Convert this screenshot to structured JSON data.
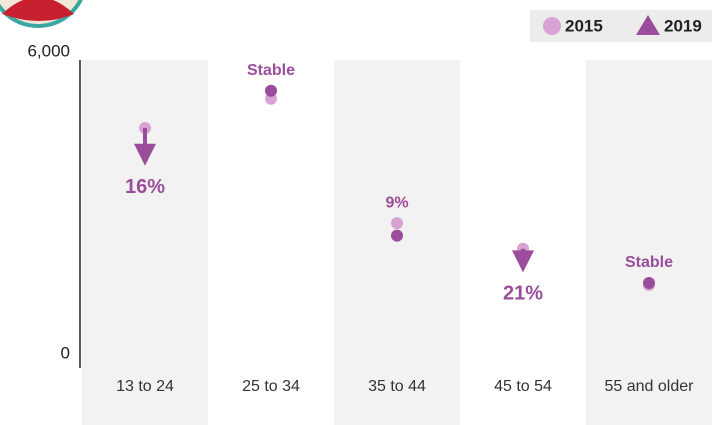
{
  "chart_data": {
    "type": "dumbbell-arrow",
    "categories": [
      "13 to 24",
      "25 to 34",
      "35 to 44",
      "45 to 54",
      "55 and older"
    ],
    "series": [
      {
        "name": "2015",
        "color": "#d8a3d2",
        "values": [
          4650,
          5230,
          2760,
          2250,
          1530
        ]
      },
      {
        "name": "2019",
        "color": "#9b4d9b",
        "values": [
          3900,
          5390,
          2510,
          1780,
          1570
        ]
      }
    ],
    "annotations": [
      "16%",
      "Stable",
      "9%",
      "21%",
      "Stable"
    ],
    "ylim": [
      0,
      6000
    ],
    "yticks": [
      0,
      {
        "value": 6000,
        "label": "6,000"
      }
    ],
    "legend": "top-right"
  }
}
